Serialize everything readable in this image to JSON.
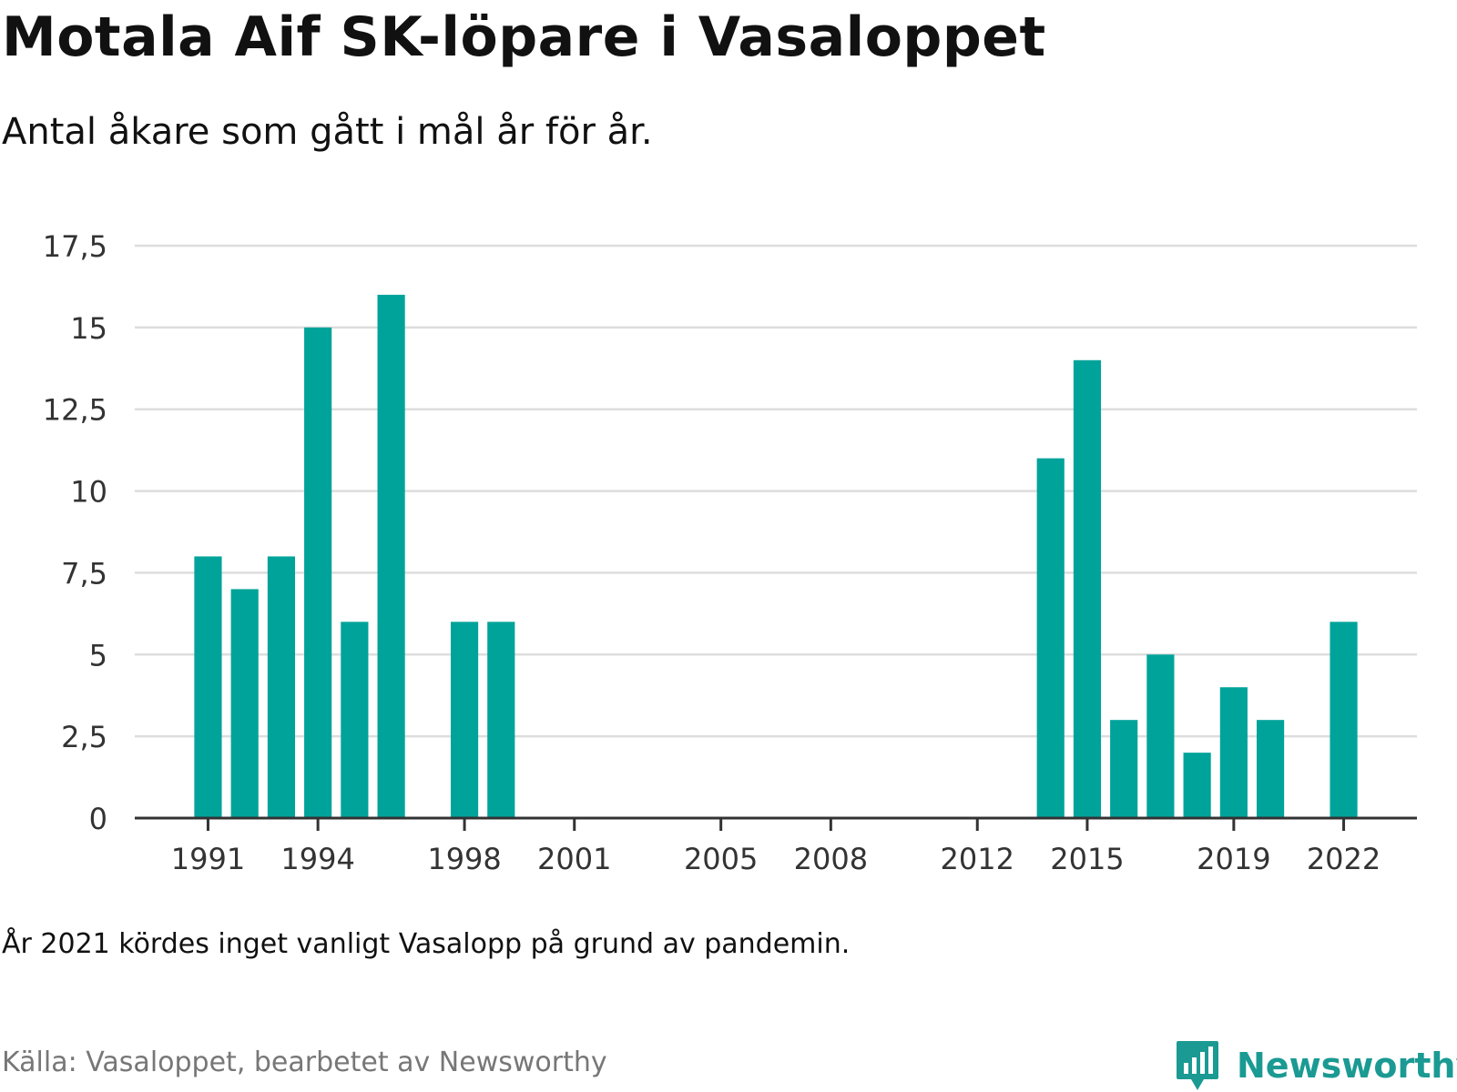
{
  "title": "Motala Aif SK-löpare i Vasaloppet",
  "subtitle": "Antal åkare som gått i mål år för år.",
  "note": "År 2021 kördes inget vanligt Vasalopp på grund av pandemin.",
  "source": "Källa: Vasaloppet, bearbetet av Newsworthy",
  "brand": {
    "name": "Newsworthy",
    "logo_icon": "bar-chart-speech-bubble-icon"
  },
  "colors": {
    "bar": "#00a39a",
    "grid": "#dddddd",
    "axis": "#333333",
    "brand": "#1a9a93"
  },
  "chart_data": {
    "type": "bar",
    "xlabel": "",
    "ylabel": "",
    "ylim": [
      0,
      17.5
    ],
    "xlim": [
      1989,
      2024
    ],
    "grid": true,
    "y_ticks": [
      "0",
      "2,5",
      "5",
      "7,5",
      "10",
      "12,5",
      "15",
      "17,5"
    ],
    "y_tick_values": [
      0,
      2.5,
      5,
      7.5,
      10,
      12.5,
      15,
      17.5
    ],
    "x_ticks": [
      1991,
      1994,
      1998,
      2001,
      2005,
      2008,
      2012,
      2015,
      2019,
      2022
    ],
    "x_tick_labels": [
      "1991",
      "1994",
      "1998",
      "2001",
      "2005",
      "2008",
      "2012",
      "2015",
      "2019",
      "2022"
    ],
    "categories": [
      1991,
      1992,
      1993,
      1994,
      1995,
      1996,
      1998,
      1999,
      2014,
      2015,
      2016,
      2017,
      2018,
      2019,
      2020,
      2022
    ],
    "values": [
      8,
      7,
      8,
      15,
      6,
      16,
      6,
      6,
      11,
      14,
      3,
      5,
      2,
      4,
      3,
      6
    ]
  }
}
